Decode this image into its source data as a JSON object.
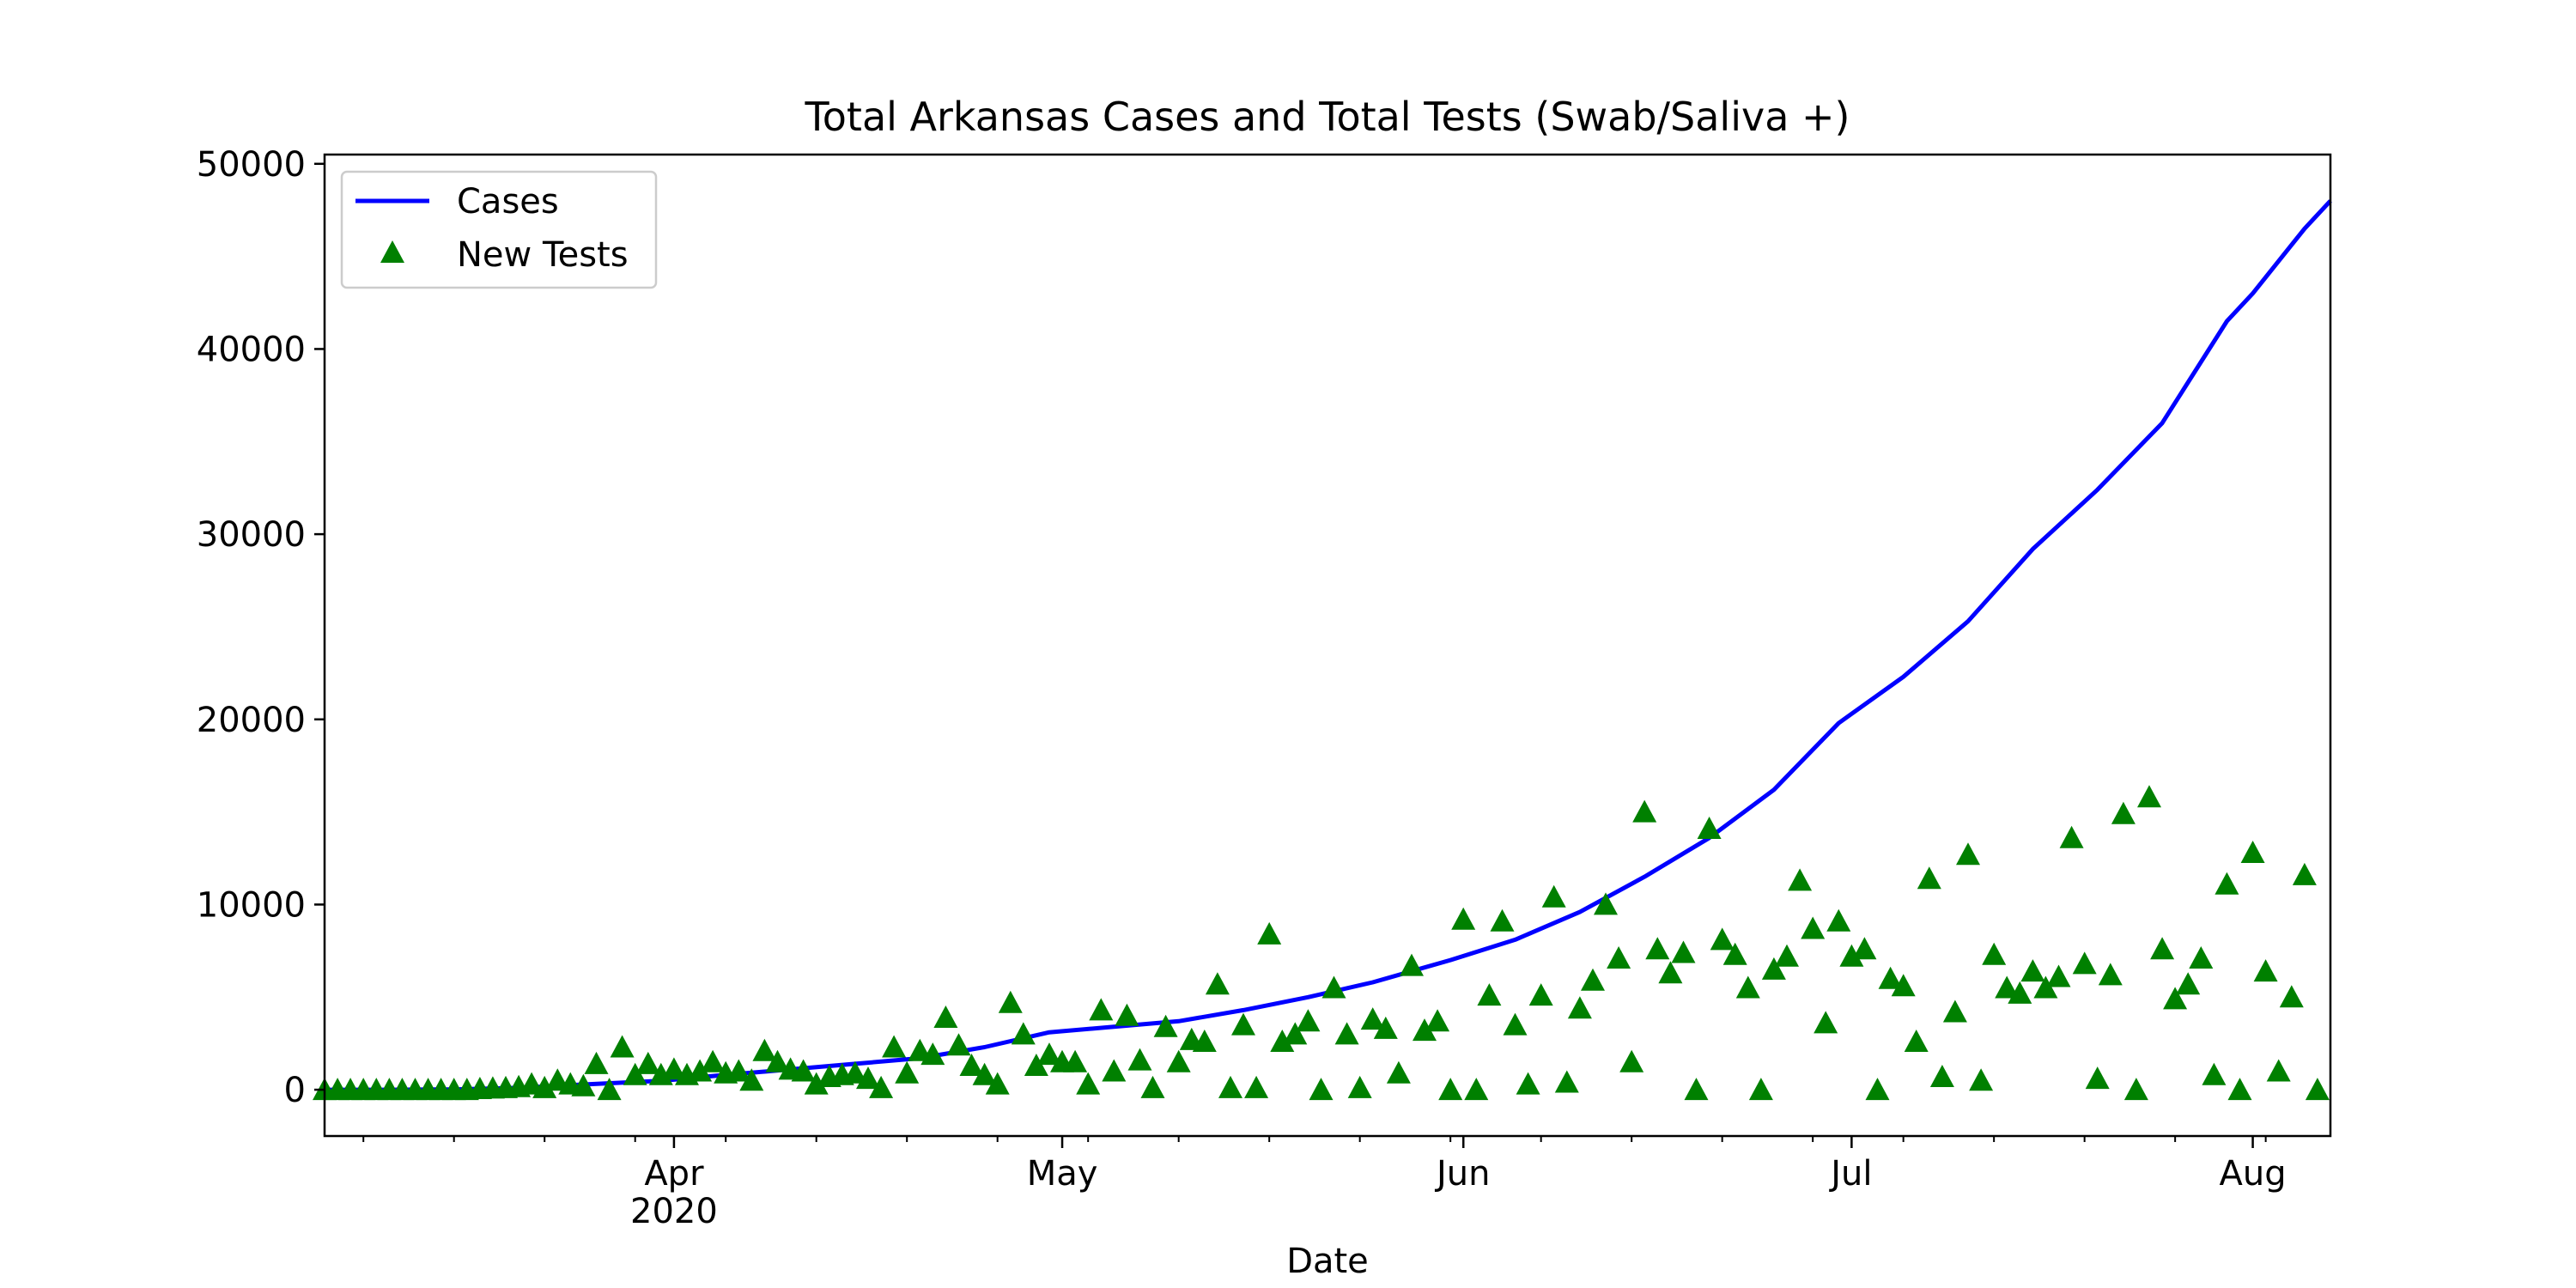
{
  "colors": {
    "cases_line": "#0000ff",
    "tests_marker": "#008000",
    "axes": "#000000",
    "background": "#ffffff",
    "legend_border": "#cccccc"
  },
  "chart_data": {
    "type": "line",
    "title": "Total Arkansas Cases and Total Tests (Swab/Saliva +)",
    "xlabel": "Date",
    "ylabel": "",
    "x_range": [
      "2020-03-05",
      "2020-08-07"
    ],
    "ylim": [
      -2500,
      50500
    ],
    "grid": false,
    "legend_position": "top-left",
    "x_ticks": [
      {
        "date": "2020-04-01",
        "label": "Apr",
        "sublabel": "2020"
      },
      {
        "date": "2020-05-01",
        "label": "May",
        "sublabel": ""
      },
      {
        "date": "2020-06-01",
        "label": "Jun",
        "sublabel": ""
      },
      {
        "date": "2020-07-01",
        "label": "Jul",
        "sublabel": ""
      },
      {
        "date": "2020-08-01",
        "label": "Aug",
        "sublabel": ""
      }
    ],
    "y_ticks": [
      {
        "value": 0,
        "label": "0"
      },
      {
        "value": 10000,
        "label": "10000"
      },
      {
        "value": 20000,
        "label": "20000"
      },
      {
        "value": 30000,
        "label": "30000"
      },
      {
        "value": 40000,
        "label": "40000"
      },
      {
        "value": 50000,
        "label": "50000"
      }
    ],
    "series": [
      {
        "name": "Cases",
        "style": "line",
        "points": [
          [
            "2020-03-05",
            0
          ],
          [
            "2020-03-10",
            0
          ],
          [
            "2020-03-15",
            20
          ],
          [
            "2020-03-20",
            100
          ],
          [
            "2020-03-25",
            280
          ],
          [
            "2020-03-31",
            480
          ],
          [
            "2020-04-05",
            800
          ],
          [
            "2020-04-10",
            1100
          ],
          [
            "2020-04-15",
            1400
          ],
          [
            "2020-04-20",
            1700
          ],
          [
            "2020-04-25",
            2300
          ],
          [
            "2020-04-30",
            3100
          ],
          [
            "2020-05-05",
            3400
          ],
          [
            "2020-05-10",
            3700
          ],
          [
            "2020-05-15",
            4300
          ],
          [
            "2020-05-20",
            5000
          ],
          [
            "2020-05-25",
            5800
          ],
          [
            "2020-05-31",
            7000
          ],
          [
            "2020-06-05",
            8100
          ],
          [
            "2020-06-10",
            9600
          ],
          [
            "2020-06-15",
            11500
          ],
          [
            "2020-06-20",
            13600
          ],
          [
            "2020-06-25",
            16200
          ],
          [
            "2020-06-30",
            19800
          ],
          [
            "2020-07-05",
            22300
          ],
          [
            "2020-07-10",
            25300
          ],
          [
            "2020-07-15",
            29200
          ],
          [
            "2020-07-20",
            32400
          ],
          [
            "2020-07-25",
            36000
          ],
          [
            "2020-07-30",
            41500
          ],
          [
            "2020-08-01",
            43000
          ],
          [
            "2020-08-05",
            46500
          ],
          [
            "2020-08-07",
            48000
          ]
        ]
      },
      {
        "name": "New Tests",
        "style": "markers",
        "points": [
          [
            "2020-03-05",
            0
          ],
          [
            "2020-03-06",
            0
          ],
          [
            "2020-03-07",
            0
          ],
          [
            "2020-03-08",
            0
          ],
          [
            "2020-03-09",
            0
          ],
          [
            "2020-03-10",
            0
          ],
          [
            "2020-03-11",
            0
          ],
          [
            "2020-03-12",
            0
          ],
          [
            "2020-03-13",
            0
          ],
          [
            "2020-03-14",
            0
          ],
          [
            "2020-03-15",
            0
          ],
          [
            "2020-03-16",
            0
          ],
          [
            "2020-03-17",
            50
          ],
          [
            "2020-03-18",
            80
          ],
          [
            "2020-03-19",
            100
          ],
          [
            "2020-03-20",
            150
          ],
          [
            "2020-03-21",
            300
          ],
          [
            "2020-03-22",
            100
          ],
          [
            "2020-03-23",
            500
          ],
          [
            "2020-03-24",
            300
          ],
          [
            "2020-03-25",
            200
          ],
          [
            "2020-03-26",
            1400
          ],
          [
            "2020-03-27",
            0
          ],
          [
            "2020-03-28",
            2300
          ],
          [
            "2020-03-29",
            800
          ],
          [
            "2020-03-30",
            1400
          ],
          [
            "2020-03-31",
            800
          ],
          [
            "2020-04-01",
            1100
          ],
          [
            "2020-04-02",
            800
          ],
          [
            "2020-04-03",
            1000
          ],
          [
            "2020-04-04",
            1500
          ],
          [
            "2020-04-05",
            900
          ],
          [
            "2020-04-06",
            1000
          ],
          [
            "2020-04-07",
            500
          ],
          [
            "2020-04-08",
            2100
          ],
          [
            "2020-04-09",
            1500
          ],
          [
            "2020-04-10",
            1100
          ],
          [
            "2020-04-11",
            1000
          ],
          [
            "2020-04-12",
            300
          ],
          [
            "2020-04-13",
            700
          ],
          [
            "2020-04-14",
            800
          ],
          [
            "2020-04-15",
            900
          ],
          [
            "2020-04-16",
            600
          ],
          [
            "2020-04-17",
            100
          ],
          [
            "2020-04-18",
            2300
          ],
          [
            "2020-04-19",
            900
          ],
          [
            "2020-04-20",
            2100
          ],
          [
            "2020-04-21",
            1900
          ],
          [
            "2020-04-22",
            3900
          ],
          [
            "2020-04-23",
            2400
          ],
          [
            "2020-04-24",
            1300
          ],
          [
            "2020-04-25",
            800
          ],
          [
            "2020-04-26",
            300
          ],
          [
            "2020-04-27",
            4700
          ],
          [
            "2020-04-28",
            3000
          ],
          [
            "2020-04-29",
            1300
          ],
          [
            "2020-04-30",
            1900
          ],
          [
            "2020-05-01",
            1500
          ],
          [
            "2020-05-02",
            1500
          ],
          [
            "2020-05-03",
            300
          ],
          [
            "2020-05-04",
            4300
          ],
          [
            "2020-05-05",
            1000
          ],
          [
            "2020-05-06",
            4000
          ],
          [
            "2020-05-07",
            1600
          ],
          [
            "2020-05-08",
            100
          ],
          [
            "2020-05-09",
            3400
          ],
          [
            "2020-05-10",
            1500
          ],
          [
            "2020-05-11",
            2700
          ],
          [
            "2020-05-12",
            2600
          ],
          [
            "2020-05-13",
            5700
          ],
          [
            "2020-05-14",
            100
          ],
          [
            "2020-05-15",
            3500
          ],
          [
            "2020-05-16",
            100
          ],
          [
            "2020-05-17",
            8400
          ],
          [
            "2020-05-18",
            2600
          ],
          [
            "2020-05-19",
            3000
          ],
          [
            "2020-05-20",
            3700
          ],
          [
            "2020-05-21",
            0
          ],
          [
            "2020-05-22",
            5500
          ],
          [
            "2020-05-23",
            3000
          ],
          [
            "2020-05-24",
            100
          ],
          [
            "2020-05-25",
            3800
          ],
          [
            "2020-05-26",
            3300
          ],
          [
            "2020-05-27",
            900
          ],
          [
            "2020-05-28",
            6700
          ],
          [
            "2020-05-29",
            3200
          ],
          [
            "2020-05-30",
            3700
          ],
          [
            "2020-05-31",
            0
          ],
          [
            "2020-06-01",
            9200
          ],
          [
            "2020-06-02",
            0
          ],
          [
            "2020-06-03",
            5100
          ],
          [
            "2020-06-04",
            9100
          ],
          [
            "2020-06-05",
            3500
          ],
          [
            "2020-06-06",
            300
          ],
          [
            "2020-06-07",
            5100
          ],
          [
            "2020-06-08",
            10400
          ],
          [
            "2020-06-09",
            400
          ],
          [
            "2020-06-10",
            4400
          ],
          [
            "2020-06-11",
            5900
          ],
          [
            "2020-06-12",
            10000
          ],
          [
            "2020-06-13",
            7100
          ],
          [
            "2020-06-14",
            1500
          ],
          [
            "2020-06-15",
            15000
          ],
          [
            "2020-06-16",
            7600
          ],
          [
            "2020-06-17",
            6300
          ],
          [
            "2020-06-18",
            7400
          ],
          [
            "2020-06-19",
            0
          ],
          [
            "2020-06-20",
            14100
          ],
          [
            "2020-06-21",
            8100
          ],
          [
            "2020-06-22",
            7300
          ],
          [
            "2020-06-23",
            5500
          ],
          [
            "2020-06-24",
            0
          ],
          [
            "2020-06-25",
            6500
          ],
          [
            "2020-06-26",
            7200
          ],
          [
            "2020-06-27",
            11300
          ],
          [
            "2020-06-28",
            8700
          ],
          [
            "2020-06-29",
            3600
          ],
          [
            "2020-06-30",
            9100
          ],
          [
            "2020-07-01",
            7200
          ],
          [
            "2020-07-02",
            7600
          ],
          [
            "2020-07-03",
            0
          ],
          [
            "2020-07-04",
            6000
          ],
          [
            "2020-07-05",
            5600
          ],
          [
            "2020-07-06",
            2600
          ],
          [
            "2020-07-07",
            11400
          ],
          [
            "2020-07-08",
            700
          ],
          [
            "2020-07-09",
            4200
          ],
          [
            "2020-07-10",
            12700
          ],
          [
            "2020-07-11",
            500
          ],
          [
            "2020-07-12",
            7300
          ],
          [
            "2020-07-13",
            5500
          ],
          [
            "2020-07-14",
            5200
          ],
          [
            "2020-07-15",
            6400
          ],
          [
            "2020-07-16",
            5500
          ],
          [
            "2020-07-17",
            6100
          ],
          [
            "2020-07-18",
            13600
          ],
          [
            "2020-07-19",
            6800
          ],
          [
            "2020-07-20",
            600
          ],
          [
            "2020-07-21",
            6200
          ],
          [
            "2020-07-22",
            14900
          ],
          [
            "2020-07-23",
            0
          ],
          [
            "2020-07-24",
            15800
          ],
          [
            "2020-07-25",
            7600
          ],
          [
            "2020-07-26",
            4900
          ],
          [
            "2020-07-27",
            5700
          ],
          [
            "2020-07-28",
            7100
          ],
          [
            "2020-07-29",
            800
          ],
          [
            "2020-07-30",
            11100
          ],
          [
            "2020-07-31",
            0
          ],
          [
            "2020-08-01",
            12800
          ],
          [
            "2020-08-02",
            6400
          ],
          [
            "2020-08-03",
            1000
          ],
          [
            "2020-08-04",
            5000
          ],
          [
            "2020-08-05",
            11600
          ],
          [
            "2020-08-06",
            0
          ]
        ]
      }
    ]
  }
}
